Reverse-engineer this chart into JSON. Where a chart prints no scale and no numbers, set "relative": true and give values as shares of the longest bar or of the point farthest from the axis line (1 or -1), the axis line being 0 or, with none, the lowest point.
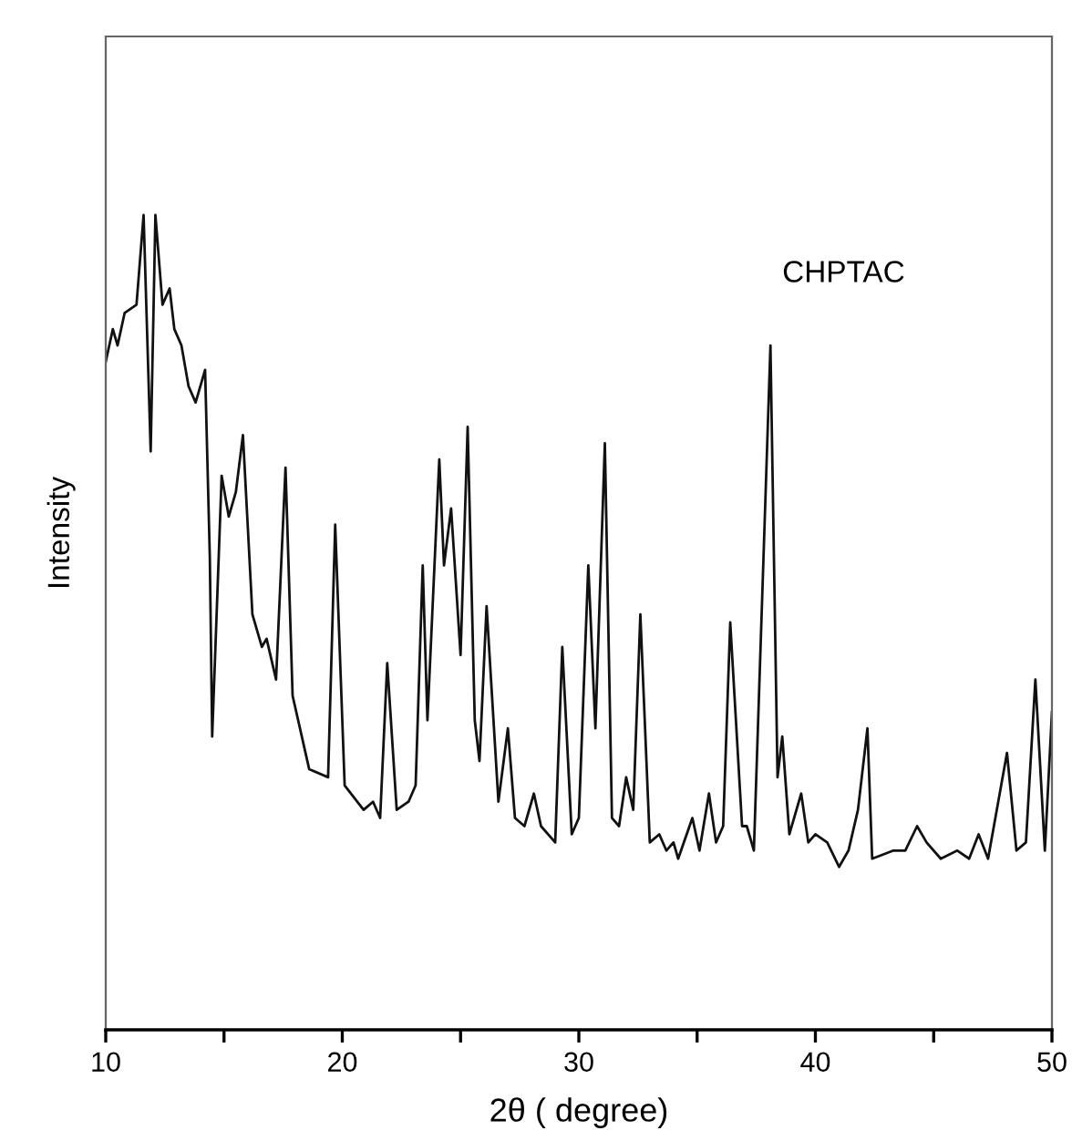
{
  "chart_data": {
    "type": "line",
    "relative": true,
    "xlabel": "2θ ( degree)",
    "ylabel": "Intensity",
    "tick_labels": "x",
    "grid": false,
    "legend": false,
    "marker": "none",
    "line_style": "solid",
    "xlim": [
      10,
      50
    ],
    "xticks": [
      10,
      {
        "value": 15,
        "label": null
      },
      20,
      {
        "value": 25,
        "label": null
      },
      30,
      {
        "value": 35,
        "label": null
      },
      40,
      {
        "value": 45,
        "label": null
      },
      50
    ],
    "series": [
      {
        "name": "CHPTAC",
        "color": "#111111",
        "x": [
          10.0,
          10.3,
          10.5,
          10.8,
          11.3,
          11.6,
          11.9,
          12.1,
          12.4,
          12.7,
          12.9,
          13.2,
          13.5,
          13.8,
          14.2,
          14.4,
          14.5,
          14.9,
          15.2,
          15.5,
          15.8,
          16.2,
          16.6,
          16.8,
          17.2,
          17.6,
          17.9,
          18.6,
          19.4,
          19.7,
          20.1,
          20.9,
          21.3,
          21.6,
          21.9,
          22.3,
          22.8,
          23.1,
          23.4,
          23.6,
          24.1,
          24.3,
          24.6,
          25.0,
          25.3,
          25.6,
          25.8,
          26.1,
          26.6,
          27.0,
          27.3,
          27.7,
          28.1,
          28.4,
          29.0,
          29.3,
          29.7,
          30.0,
          30.4,
          30.7,
          31.1,
          31.4,
          31.7,
          32.0,
          32.3,
          32.6,
          33.0,
          33.4,
          33.7,
          34.0,
          34.2,
          34.8,
          35.1,
          35.5,
          35.8,
          36.1,
          36.4,
          36.9,
          37.1,
          37.4,
          38.1,
          38.4,
          38.6,
          38.9,
          39.4,
          39.7,
          40.0,
          40.5,
          41.0,
          41.4,
          41.8,
          42.2,
          42.4,
          43.3,
          43.8,
          44.3,
          44.7,
          45.3,
          46.0,
          46.5,
          46.9,
          47.3,
          48.1,
          48.5,
          48.9,
          49.3,
          49.7,
          50.0
        ],
        "values": [
          0.82,
          0.86,
          0.84,
          0.88,
          0.89,
          1.0,
          0.71,
          1.0,
          0.89,
          0.91,
          0.86,
          0.84,
          0.79,
          0.77,
          0.81,
          0.58,
          0.36,
          0.68,
          0.63,
          0.66,
          0.73,
          0.51,
          0.47,
          0.48,
          0.43,
          0.69,
          0.41,
          0.32,
          0.31,
          0.62,
          0.3,
          0.27,
          0.28,
          0.26,
          0.45,
          0.27,
          0.28,
          0.3,
          0.57,
          0.38,
          0.7,
          0.57,
          0.64,
          0.46,
          0.74,
          0.38,
          0.33,
          0.52,
          0.28,
          0.37,
          0.26,
          0.25,
          0.29,
          0.25,
          0.23,
          0.47,
          0.24,
          0.26,
          0.57,
          0.37,
          0.72,
          0.26,
          0.25,
          0.31,
          0.27,
          0.51,
          0.23,
          0.24,
          0.22,
          0.23,
          0.21,
          0.26,
          0.22,
          0.29,
          0.23,
          0.25,
          0.5,
          0.25,
          0.25,
          0.22,
          0.84,
          0.31,
          0.36,
          0.24,
          0.29,
          0.23,
          0.24,
          0.23,
          0.2,
          0.22,
          0.27,
          0.37,
          0.21,
          0.22,
          0.22,
          0.25,
          0.23,
          0.21,
          0.22,
          0.21,
          0.24,
          0.21,
          0.34,
          0.22,
          0.23,
          0.43,
          0.22,
          0.39
        ]
      }
    ]
  }
}
